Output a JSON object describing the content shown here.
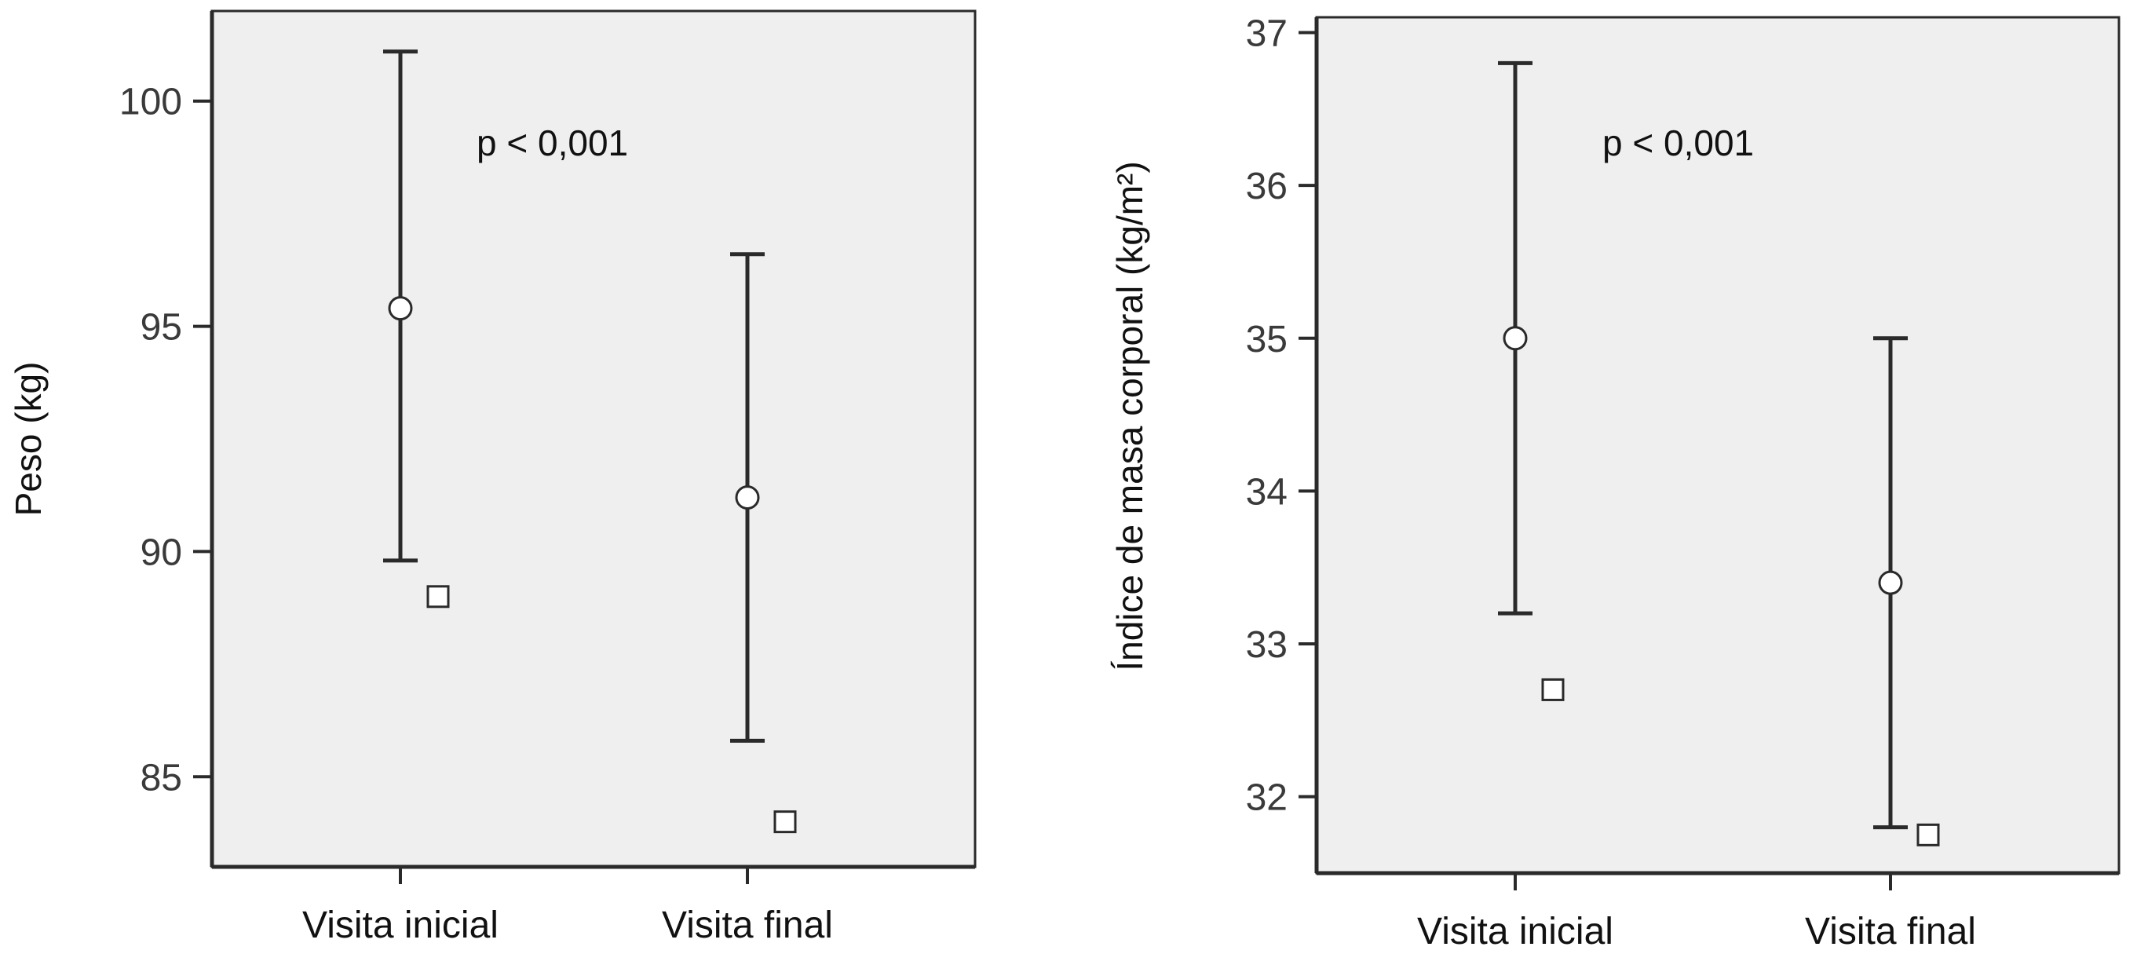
{
  "chart_data": [
    {
      "type": "errorbar",
      "ylabel": "Peso (kg)",
      "xlabel": "",
      "categories": [
        "Visita inicial",
        "Visita final"
      ],
      "ylim": [
        83.0,
        102.0
      ],
      "yticks": [
        85,
        90,
        95,
        100
      ],
      "grid": false,
      "annotation": "p < 0,001",
      "mean": [
        95.4,
        91.2
      ],
      "lower": [
        89.8,
        85.8
      ],
      "upper": [
        101.1,
        96.6
      ],
      "square_marker": [
        89.0,
        84.0
      ]
    },
    {
      "type": "errorbar",
      "ylabel": "Índice de masa corporal (kg/m²)",
      "xlabel": "",
      "categories": [
        "Visita inicial",
        "Visita final"
      ],
      "ylim": [
        31.5,
        37.1
      ],
      "yticks": [
        32,
        33,
        34,
        35,
        36,
        37
      ],
      "grid": false,
      "annotation": "p < 0,001",
      "mean": [
        35.0,
        33.4
      ],
      "lower": [
        33.2,
        31.8
      ],
      "upper": [
        36.8,
        35.0
      ],
      "square_marker": [
        32.7,
        31.75
      ]
    }
  ]
}
